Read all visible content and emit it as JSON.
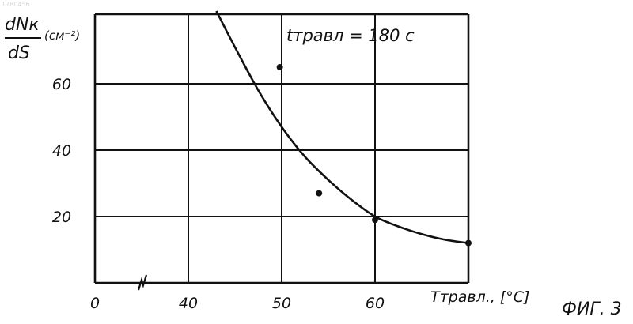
{
  "doc_number": "1780456",
  "figure_label": "ФИГ. 3",
  "chart_data": {
    "type": "scatter",
    "ylabel": {
      "numerator": "dNк",
      "denominator": "dS",
      "unit": "(см⁻²)"
    },
    "xlabel": "Tтравл., [°C]",
    "annotation": "tтравл = 180 с",
    "x_tick_labels": [
      "0",
      "40",
      "50",
      "60"
    ],
    "y_tick_labels": [
      "20",
      "40",
      "60"
    ],
    "x_ticks": [
      40,
      50,
      60
    ],
    "y_ticks": [
      20,
      40,
      60
    ],
    "xlim": [
      30,
      70
    ],
    "ylim": [
      0,
      80
    ],
    "x_axis_break": true,
    "grid": true,
    "points": [
      {
        "x": 49.8,
        "y": 65
      },
      {
        "x": 54,
        "y": 27
      },
      {
        "x": 60,
        "y": 19
      },
      {
        "x": 70,
        "y": 12
      }
    ],
    "fit_curve": [
      {
        "x": 43,
        "y": 82
      },
      {
        "x": 45,
        "y": 71
      },
      {
        "x": 47.5,
        "y": 58
      },
      {
        "x": 50,
        "y": 47
      },
      {
        "x": 52.5,
        "y": 38
      },
      {
        "x": 55,
        "y": 31
      },
      {
        "x": 57.5,
        "y": 25
      },
      {
        "x": 60,
        "y": 20
      },
      {
        "x": 62.5,
        "y": 17
      },
      {
        "x": 65,
        "y": 14.7
      },
      {
        "x": 67.5,
        "y": 13
      },
      {
        "x": 70,
        "y": 12
      }
    ]
  }
}
